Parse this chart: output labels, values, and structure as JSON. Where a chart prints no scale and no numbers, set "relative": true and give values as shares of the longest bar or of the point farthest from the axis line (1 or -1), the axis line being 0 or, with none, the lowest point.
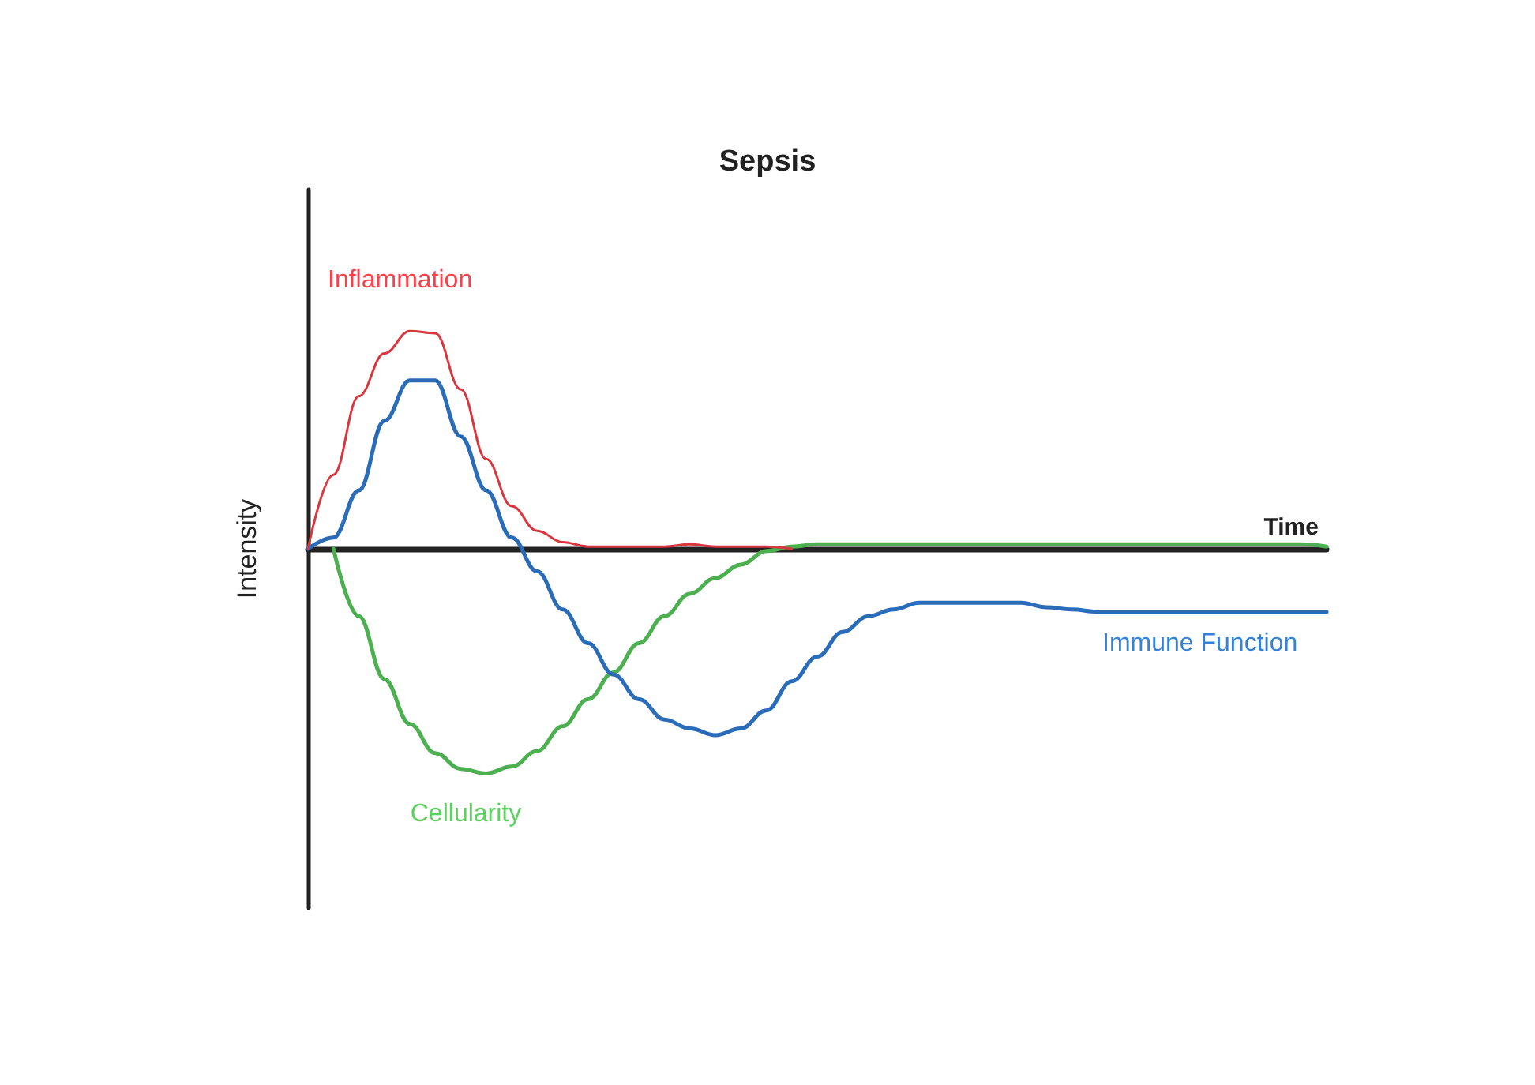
{
  "chart_data": {
    "type": "line",
    "title": "Sepsis",
    "xlabel": "Time",
    "ylabel": "Intensity",
    "relative": true,
    "grid": false,
    "legend": false,
    "marker": "none",
    "line_style": "solid",
    "categories": [
      null,
      null,
      null,
      null,
      null,
      null,
      null,
      null,
      null,
      null,
      null,
      null,
      null,
      null,
      null,
      null,
      null,
      null,
      null,
      null,
      null,
      null,
      null,
      null,
      null,
      null,
      null,
      null,
      null,
      null,
      null,
      null,
      null,
      null,
      null,
      null,
      null,
      null,
      null,
      null,
      null
    ],
    "series": [
      {
        "name": "Inflammation",
        "color": "#d9363e",
        "values": [
          0,
          0.33,
          0.68,
          0.87,
          0.97,
          0.96,
          0.71,
          0.4,
          0.19,
          0.08,
          0.03,
          0.01,
          0.01,
          0.01,
          0.01,
          0.02,
          0.01,
          0.01,
          0.01,
          0,
          null,
          null,
          null,
          null,
          null,
          null,
          null,
          null,
          null,
          null,
          null,
          null,
          null,
          null,
          null,
          null,
          null,
          null,
          null,
          null,
          null
        ]
      },
      {
        "name": "Immune Function",
        "color": "#2b6cb8",
        "values": [
          0,
          0.05,
          0.26,
          0.57,
          0.75,
          0.75,
          0.5,
          0.26,
          0.05,
          -0.1,
          -0.27,
          -0.42,
          -0.56,
          -0.67,
          -0.76,
          -0.8,
          -0.83,
          -0.8,
          -0.72,
          -0.59,
          -0.48,
          -0.37,
          -0.3,
          -0.27,
          -0.24,
          -0.24,
          -0.24,
          -0.24,
          -0.24,
          -0.26,
          -0.27,
          -0.28,
          -0.28,
          -0.28,
          -0.28,
          -0.28,
          -0.28,
          -0.28,
          -0.28,
          -0.28,
          -0.28
        ]
      },
      {
        "name": "Cellularity",
        "color": "#4caf50",
        "values": [
          null,
          0,
          -0.3,
          -0.58,
          -0.78,
          -0.91,
          -0.98,
          -1,
          -0.97,
          -0.9,
          -0.79,
          -0.67,
          -0.55,
          -0.42,
          -0.3,
          -0.2,
          -0.13,
          -0.07,
          -0.01,
          0.01,
          0.02,
          0.02,
          0.02,
          0.02,
          0.02,
          0.02,
          0.02,
          0.02,
          0.02,
          0.02,
          0.02,
          0.02,
          0.02,
          0.02,
          0.02,
          0.02,
          0.02,
          0.02,
          0.02,
          0.02,
          0.01
        ]
      }
    ]
  }
}
